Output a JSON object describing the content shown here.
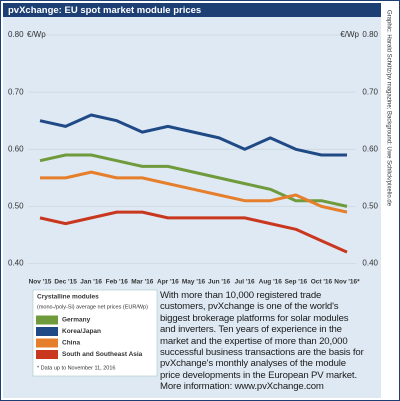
{
  "header": {
    "title": "pvXchange: EU spot market module prices"
  },
  "credit": "Graphic: Harald Schütz/pv magazine; Background: Uwe Schlick/pixelio.de",
  "chart_data": {
    "type": "line",
    "categories": [
      "Nov '15",
      "Dec '15",
      "Jan '16",
      "Feb '16",
      "Mar '16",
      "Apr '16",
      "May '16",
      "Jun '16",
      "Jul '16",
      "Aug '16",
      "Sep '16",
      "Oct '16",
      "Nov '16*"
    ],
    "series": [
      {
        "name": "Germany",
        "color": "#6f9b3c",
        "values": [
          0.58,
          0.59,
          0.59,
          0.58,
          0.57,
          0.57,
          0.56,
          0.55,
          0.54,
          0.53,
          0.51,
          0.51,
          0.5
        ]
      },
      {
        "name": "Korea/Japan",
        "color": "#1f4a86",
        "values": [
          0.65,
          0.64,
          0.66,
          0.65,
          0.63,
          0.64,
          0.63,
          0.62,
          0.6,
          0.62,
          0.6,
          0.59,
          0.59
        ]
      },
      {
        "name": "China",
        "color": "#e57f2c",
        "values": [
          0.55,
          0.55,
          0.56,
          0.55,
          0.55,
          0.54,
          0.53,
          0.52,
          0.51,
          0.51,
          0.52,
          0.5,
          0.49
        ]
      },
      {
        "name": "South and Southeast Asia",
        "color": "#c9371f",
        "values": [
          0.48,
          0.47,
          0.48,
          0.49,
          0.49,
          0.48,
          0.48,
          0.48,
          0.48,
          0.47,
          0.46,
          0.44,
          0.42
        ]
      }
    ],
    "ylim": [
      0.38,
      0.8
    ],
    "yticks": [
      {
        "value": 0.4,
        "label": "0.40"
      },
      {
        "value": 0.5,
        "label": "0.50"
      },
      {
        "value": 0.6,
        "label": "0.60"
      },
      {
        "value": 0.7,
        "label": "0.70"
      },
      {
        "value": 0.8,
        "label": "0.80"
      }
    ],
    "y_unit": "€/Wp",
    "grid": true,
    "legend": {
      "title": "Crystalline modules",
      "subtitle": "(mono-/poly-Si) average net prices (EUR/Wp)",
      "note": "* Data up to November 11, 2016"
    }
  },
  "text": "With more than 10,000 registered trade customers, pvXchange is one of the world's biggest brokerage platforms for solar modules and inverters. Ten years of experience in the market and the expertise of more than 20,000 successful business transactions are the basis for pvXchange's monthly analyses of the module price developments in the European PV market. More information: www.pvXchange.com"
}
